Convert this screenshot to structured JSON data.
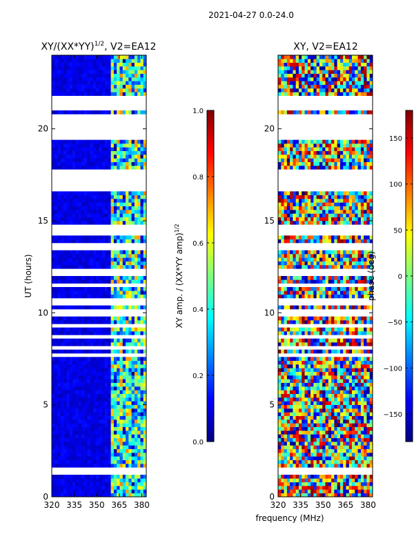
{
  "suptitle": "2021-04-27 0.0-24.0",
  "colors": {
    "jet": [
      "#00007f",
      "#0000ff",
      "#007fff",
      "#00ffff",
      "#7fff7f",
      "#ffff00",
      "#ff7f00",
      "#ff0000",
      "#7f0000"
    ],
    "flag": "#ffffff",
    "axis": "#000000"
  },
  "chart_data": [
    {
      "type": "heatmap",
      "title": "XY/(XX*YY)",
      "title_sup": "1/2",
      "title_suffix": ", V2=EA12",
      "xlabel": "",
      "ylabel": "UT (hours)",
      "xlim": [
        320,
        383
      ],
      "ylim": [
        0,
        24
      ],
      "xticks": [
        320,
        335,
        350,
        365,
        380
      ],
      "yticks": [
        0,
        5,
        10,
        15,
        20
      ],
      "quantity": "normalized XY amplitude",
      "channel_bands": [
        {
          "freq_range": [
            320,
            360
          ],
          "typical_value": 0.1
        },
        {
          "freq_range": [
            360,
            383
          ],
          "typical_value": 0.45
        }
      ],
      "flagged_ut_ranges": [
        [
          1.3,
          1.6
        ],
        [
          21.0,
          21.7
        ],
        [
          19.5,
          20.7
        ],
        [
          16.6,
          17.7
        ],
        [
          14.3,
          14.8
        ],
        [
          13.5,
          13.7
        ],
        [
          12.1,
          12.3
        ],
        [
          11.4,
          11.6
        ],
        [
          10.5,
          10.8
        ],
        [
          9.9,
          10.1
        ],
        [
          9.3,
          9.4
        ],
        [
          8.6,
          8.8
        ],
        [
          8.0,
          8.1
        ],
        [
          7.7,
          7.8
        ]
      ],
      "colorbar": {
        "label": "XY amp. / (XX*YY amp)",
        "label_sup": "1/2",
        "range": [
          0.0,
          1.0
        ],
        "ticks": [
          "0.0",
          "0.2",
          "0.4",
          "0.6",
          "0.8",
          "1.0"
        ]
      }
    },
    {
      "type": "heatmap",
      "title": "XY, V2=EA12",
      "xlabel": "",
      "ylabel": "",
      "xlim": [
        320,
        383
      ],
      "ylim": [
        0,
        24
      ],
      "xticks": [
        320,
        335,
        350,
        365,
        380
      ],
      "yticks": [
        0,
        5,
        10,
        15,
        20
      ],
      "quantity": "XY phase (deg)",
      "flagged_ut_ranges": [
        [
          1.3,
          1.6
        ],
        [
          21.0,
          21.7
        ],
        [
          19.5,
          20.7
        ],
        [
          16.6,
          17.7
        ],
        [
          14.3,
          14.8
        ],
        [
          13.5,
          13.7
        ],
        [
          12.1,
          12.3
        ],
        [
          11.4,
          11.6
        ],
        [
          10.5,
          10.8
        ],
        [
          9.9,
          10.1
        ],
        [
          9.3,
          9.4
        ],
        [
          8.6,
          8.8
        ],
        [
          8.0,
          8.1
        ],
        [
          7.7,
          7.8
        ]
      ],
      "colorbar": {
        "label": "phase (deg)",
        "range": [
          -180,
          180
        ],
        "ticks": [
          "150",
          "100",
          "50",
          "0",
          "−50",
          "−100",
          "−150"
        ]
      }
    }
  ],
  "shared_xlabel": "frequency (MHz)"
}
